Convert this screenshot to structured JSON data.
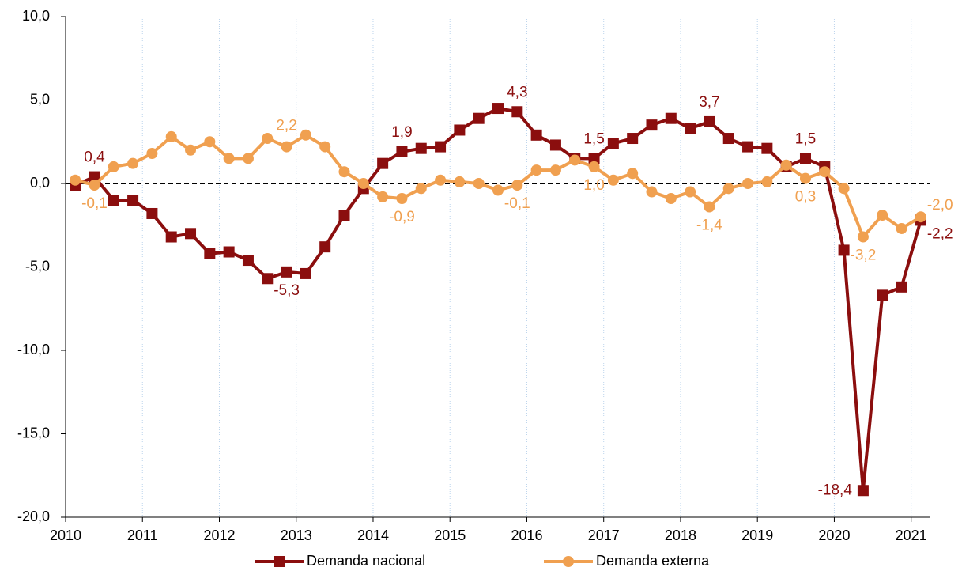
{
  "chart_data": {
    "type": "line",
    "x": [
      2010.125,
      2010.375,
      2010.625,
      2010.875,
      2011.125,
      2011.375,
      2011.625,
      2011.875,
      2012.125,
      2012.375,
      2012.625,
      2012.875,
      2013.125,
      2013.375,
      2013.625,
      2013.875,
      2014.125,
      2014.375,
      2014.625,
      2014.875,
      2015.125,
      2015.375,
      2015.625,
      2015.875,
      2016.125,
      2016.375,
      2016.625,
      2016.875,
      2017.125,
      2017.375,
      2017.625,
      2017.875,
      2018.125,
      2018.375,
      2018.625,
      2018.875,
      2019.125,
      2019.375,
      2019.625,
      2019.875,
      2020.125,
      2020.375,
      2020.625,
      2020.875,
      2021.125
    ],
    "series": [
      {
        "name": "Demanda nacional",
        "color": "#8b0e0e",
        "marker": "square",
        "values": [
          -0.1,
          0.4,
          -1.0,
          -1.0,
          -1.8,
          -3.2,
          -3.0,
          -4.2,
          -4.1,
          -4.6,
          -5.7,
          -5.3,
          -5.4,
          -3.8,
          -1.9,
          -0.3,
          1.2,
          1.9,
          2.1,
          2.2,
          3.2,
          3.9,
          4.5,
          4.3,
          2.9,
          2.3,
          1.5,
          1.5,
          2.4,
          2.7,
          3.5,
          3.9,
          3.3,
          3.7,
          2.7,
          2.2,
          2.1,
          1.0,
          1.5,
          1.0,
          -4.0,
          -18.4,
          -6.7,
          -6.2,
          -2.2
        ],
        "value_labels": [
          null,
          "0,4",
          null,
          null,
          null,
          null,
          null,
          null,
          null,
          null,
          null,
          "-5,3",
          null,
          null,
          null,
          null,
          null,
          "1,9",
          null,
          null,
          null,
          null,
          null,
          "4,3",
          null,
          null,
          null,
          "1,5",
          null,
          null,
          null,
          null,
          null,
          "3,7",
          null,
          null,
          null,
          null,
          "1,5",
          null,
          null,
          "-18,4",
          null,
          null,
          "-2,2"
        ]
      },
      {
        "name": "Demanda externa",
        "color": "#f0a050",
        "marker": "circle",
        "values": [
          0.2,
          -0.1,
          1.0,
          1.2,
          1.8,
          2.8,
          2.0,
          2.5,
          1.5,
          1.5,
          2.7,
          2.2,
          2.9,
          2.2,
          0.7,
          0.0,
          -0.8,
          -0.9,
          -0.3,
          0.2,
          0.1,
          0.0,
          -0.4,
          -0.1,
          0.8,
          0.8,
          1.4,
          1.0,
          0.2,
          0.6,
          -0.5,
          -0.9,
          -0.5,
          -1.4,
          -0.3,
          0.0,
          0.1,
          1.1,
          0.3,
          0.7,
          -0.3,
          -3.2,
          -1.9,
          -2.7,
          -2.0
        ],
        "value_labels": [
          null,
          "-0,1",
          null,
          null,
          null,
          null,
          null,
          null,
          null,
          null,
          null,
          "2,2",
          null,
          null,
          null,
          null,
          null,
          "-0,9",
          null,
          null,
          null,
          null,
          null,
          "-0,1",
          null,
          null,
          null,
          "1,0",
          null,
          null,
          null,
          null,
          null,
          "-1,4",
          null,
          null,
          null,
          null,
          "0,3",
          null,
          null,
          "-3,2",
          null,
          null,
          "-2,0"
        ]
      }
    ],
    "xlim": [
      2010,
      2021.25
    ],
    "xticks": [
      2010,
      2011,
      2012,
      2013,
      2014,
      2015,
      2016,
      2017,
      2018,
      2019,
      2020,
      2021
    ],
    "ylim": [
      -20,
      10
    ],
    "yticks": [
      {
        "value": -20,
        "label": "-20,0"
      },
      {
        "value": -15,
        "label": "-15,0"
      },
      {
        "value": -10,
        "label": "-10,0"
      },
      {
        "value": -5,
        "label": "-5,0"
      },
      {
        "value": 0,
        "label": "0,0"
      },
      {
        "value": 5,
        "label": "5,0"
      },
      {
        "value": 10,
        "label": "10,0"
      }
    ],
    "reference_line": 0,
    "grid": true,
    "legend": "bottom"
  }
}
